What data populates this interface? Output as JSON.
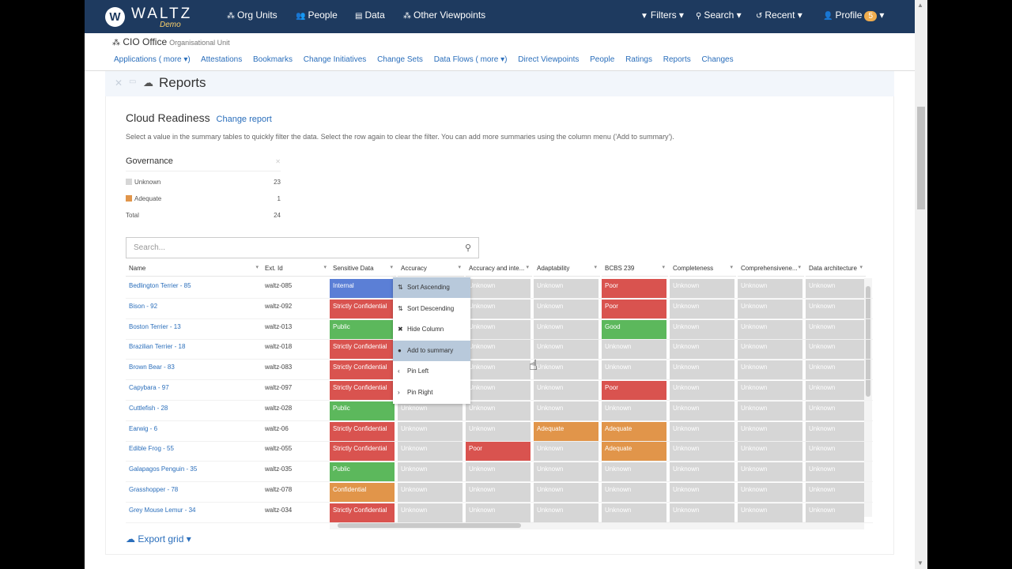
{
  "nav": {
    "logo_letter": "W",
    "brand": "WALTZ",
    "brand_sub": "Demo",
    "items": [
      {
        "icon": "⁂",
        "label": "Org Units"
      },
      {
        "icon": "👥",
        "label": "People"
      },
      {
        "icon": "▤",
        "label": "Data"
      },
      {
        "icon": "⁂",
        "label": "Other Viewpoints"
      }
    ],
    "right": [
      {
        "icon": "▼",
        "label": "Filters ▾"
      },
      {
        "icon": "⚲",
        "label": "Search ▾"
      },
      {
        "icon": "↺",
        "label": "Recent ▾"
      },
      {
        "icon": "👤",
        "label": "Profile"
      }
    ],
    "profile_badge": "5",
    "profile_caret": "▾"
  },
  "unit": {
    "title": "CIO Office",
    "type": "Organisational Unit"
  },
  "sections": [
    "Applications ( more ▾)",
    "Attestations",
    "Bookmarks",
    "Change Initiatives",
    "Change Sets",
    "Data Flows ( more ▾)",
    "Direct Viewpoints",
    "People",
    "Ratings",
    "Reports",
    "Changes"
  ],
  "panel": {
    "close": "✕",
    "pin": "▭",
    "title": "Reports"
  },
  "report": {
    "title": "Cloud Readiness",
    "change_link": "Change report",
    "help": "Select a value in the summary tables to quickly filter the data. Select the row again to clear the filter. You can add more summaries using the column menu ('Add to summary')."
  },
  "governance": {
    "title": "Governance",
    "close": "✕",
    "rows": [
      {
        "label": "Unknown",
        "count": "23",
        "color": "#d6d6d6"
      },
      {
        "label": "Adequate",
        "count": "1",
        "color": "#e1954a"
      }
    ],
    "total_label": "Total",
    "total": "24"
  },
  "search": {
    "placeholder": "Search..."
  },
  "grid": {
    "columns": [
      "Name",
      "Ext. Id",
      "Sensitive Data",
      "Accuracy",
      "Accuracy and inte...",
      "Adaptability",
      "BCBS 239",
      "Completeness",
      "Comprehensivene...",
      "Data architecture"
    ],
    "rows": [
      [
        "Bedlington Terrier - 85",
        "waltz-085",
        "Internal",
        "",
        "Unknown",
        "Unknown",
        "Poor",
        "Unknown",
        "Unknown",
        "Unknown"
      ],
      [
        "Bison - 92",
        "waltz-092",
        "Strictly Confidential",
        "",
        "Unknown",
        "Unknown",
        "Poor",
        "Unknown",
        "Unknown",
        "Unknown"
      ],
      [
        "Boston Terrier - 13",
        "waltz-013",
        "Public",
        "",
        "Unknown",
        "Unknown",
        "Good",
        "Unknown",
        "Unknown",
        "Unknown"
      ],
      [
        "Brazilian Terrier - 18",
        "waltz-018",
        "Strictly Confidential",
        "",
        "Unknown",
        "Unknown",
        "Unknown",
        "Unknown",
        "Unknown",
        "Unknown"
      ],
      [
        "Brown Bear - 83",
        "waltz-083",
        "Strictly Confidential",
        "",
        "Unknown",
        "Unknown",
        "Unknown",
        "Unknown",
        "Unknown",
        "Unknown"
      ],
      [
        "Capybara - 97",
        "waltz-097",
        "Strictly Confidential",
        "",
        "Unknown",
        "Unknown",
        "Poor",
        "Unknown",
        "Unknown",
        "Unknown"
      ],
      [
        "Cuttlefish - 28",
        "waltz-028",
        "Public",
        "Unknown",
        "Unknown",
        "Unknown",
        "Unknown",
        "Unknown",
        "Unknown",
        "Unknown"
      ],
      [
        "Earwig - 6",
        "waltz-06",
        "Strictly Confidential",
        "Unknown",
        "Unknown",
        "Adequate",
        "Adequate",
        "Unknown",
        "Unknown",
        "Unknown"
      ],
      [
        "Edible Frog - 55",
        "waltz-055",
        "Strictly Confidential",
        "Unknown",
        "Poor",
        "Unknown",
        "Adequate",
        "Unknown",
        "Unknown",
        "Unknown"
      ],
      [
        "Galapagos Penguin - 35",
        "waltz-035",
        "Public",
        "Unknown",
        "Unknown",
        "Unknown",
        "Unknown",
        "Unknown",
        "Unknown",
        "Unknown"
      ],
      [
        "Grasshopper - 78",
        "waltz-078",
        "Confidential",
        "Unknown",
        "Unknown",
        "Unknown",
        "Unknown",
        "Unknown",
        "Unknown",
        "Unknown"
      ],
      [
        "Grey Mouse Lemur - 34",
        "waltz-034",
        "Strictly Confidential",
        "Unknown",
        "Unknown",
        "Unknown",
        "Unknown",
        "Unknown",
        "Unknown",
        "Unknown"
      ]
    ]
  },
  "rating_colors": {
    "Internal": "#5b7fd6",
    "Strictly Confidential": "#d9534f",
    "Confidential": "#e1954a",
    "Public": "#5cb85c",
    "Poor": "#d9534f",
    "Good": "#5cb85c",
    "Adequate": "#e1954a",
    "Unknown": "#d6d6d6"
  },
  "context_menu": [
    {
      "icon": "⇅",
      "label": "Sort Ascending"
    },
    {
      "icon": "⇅",
      "label": "Sort Descending"
    },
    {
      "icon": "✖",
      "label": "Hide Column"
    },
    {
      "icon": "●",
      "label": "Add to summary"
    },
    {
      "icon": "‹",
      "label": "Pin Left"
    },
    {
      "icon": "›",
      "label": "Pin Right"
    }
  ],
  "export": {
    "icon": "☁",
    "label": "Export grid",
    "caret": "▾"
  }
}
